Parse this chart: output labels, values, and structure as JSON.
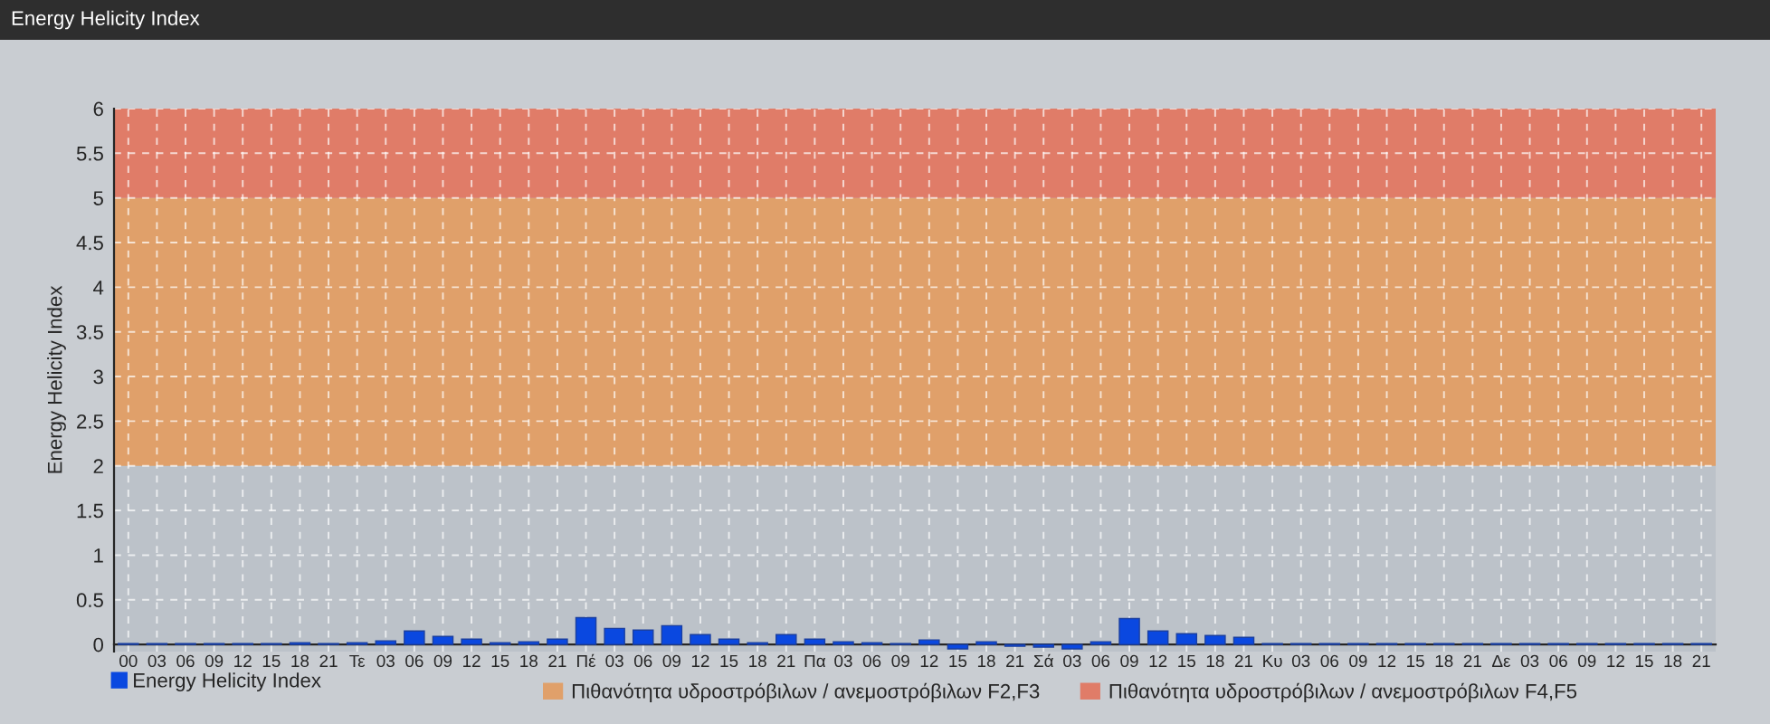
{
  "chart_data": {
    "type": "bar",
    "title": "Energy Helicity Index",
    "ylabel": "Energy Helicity Index",
    "categories": [
      "00",
      "03",
      "06",
      "09",
      "12",
      "15",
      "18",
      "21",
      "Τε",
      "03",
      "06",
      "09",
      "12",
      "15",
      "18",
      "21",
      "Πέ",
      "03",
      "06",
      "09",
      "12",
      "15",
      "18",
      "21",
      "Πα",
      "03",
      "06",
      "09",
      "12",
      "15",
      "18",
      "21",
      "Σά",
      "03",
      "06",
      "09",
      "12",
      "15",
      "18",
      "21",
      "Κυ",
      "03",
      "06",
      "09",
      "12",
      "15",
      "18",
      "21",
      "Δε",
      "03",
      "06",
      "09",
      "12",
      "15",
      "18",
      "21"
    ],
    "series": [
      {
        "name": "Energy Helicity Index",
        "color": "#0a48e0",
        "values": [
          0.01,
          0.01,
          0.01,
          0.01,
          0.01,
          0.01,
          0.02,
          0.01,
          0.02,
          0.04,
          0.15,
          0.09,
          0.06,
          0.02,
          0.03,
          0.06,
          0.3,
          0.18,
          0.16,
          0.21,
          0.11,
          0.06,
          0.02,
          0.11,
          0.06,
          0.03,
          0.02,
          0.01,
          0.05,
          -0.05,
          0.03,
          -0.02,
          -0.03,
          -0.05,
          0.03,
          0.29,
          0.15,
          0.12,
          0.1,
          0.08,
          0.01,
          0.01,
          0.01,
          0.01,
          0.01,
          0.01,
          0.01,
          0.01,
          0.01,
          0.01,
          0.01,
          0.01,
          0.01,
          0.01,
          0.01,
          0.01
        ]
      }
    ],
    "ylim": [
      -0.08,
      6
    ],
    "yticks": [
      0,
      0.5,
      1,
      1.5,
      2,
      2.5,
      3,
      3.5,
      4,
      4.5,
      5,
      5.5,
      6
    ],
    "bands": [
      {
        "axis": "y",
        "from": 2,
        "to": 5,
        "label": "Πιθανότητα υδροστρόβιλων / ανεμοστρόβιλων F2,F3",
        "color": "#e0a06a"
      },
      {
        "axis": "y",
        "from": 5,
        "to": 6,
        "label": "Πιθανότητα υδροστρόβιλων / ανεμοστρόβιλων F4,F5",
        "color": "#e07c68"
      }
    ],
    "grid": true,
    "legend": "bottom left"
  }
}
